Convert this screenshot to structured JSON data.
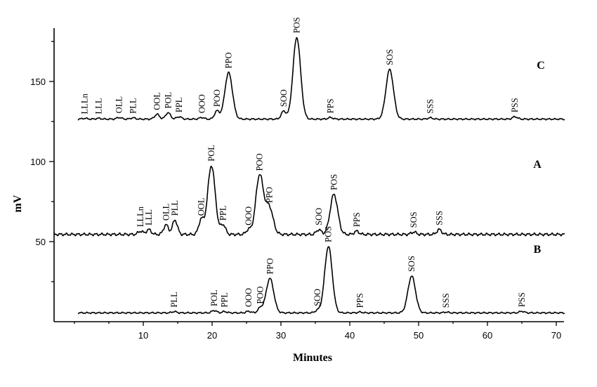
{
  "chart_data": {
    "type": "line",
    "xlabel": "Minutes",
    "ylabel": "mV",
    "xlim": [
      -3,
      72
    ],
    "ylim": [
      0,
      180
    ],
    "x_ticks": [
      10,
      20,
      30,
      40,
      50,
      60,
      70
    ],
    "y_ticks": [
      50,
      100,
      150
    ],
    "grid": false,
    "series": [
      {
        "name": "C",
        "baseline": 126.5,
        "noise_start": 0.5,
        "peaks": [
          {
            "label": "LLLn",
            "x": 1.5,
            "height": 0.5
          },
          {
            "label": "LLL",
            "x": 3.5,
            "height": 0.5
          },
          {
            "label": "OLL",
            "x": 6.5,
            "height": 1.0
          },
          {
            "label": "PLL",
            "x": 8.5,
            "height": 0.8
          },
          {
            "label": "OOL",
            "x": 12.0,
            "height": 3.0
          },
          {
            "label": "POL",
            "x": 13.6,
            "height": 4.0
          },
          {
            "label": "PPL",
            "x": 15.2,
            "height": 1.5
          },
          {
            "label": "OOO",
            "x": 18.5,
            "height": 1.0
          },
          {
            "label": "POO",
            "x": 20.7,
            "height": 5.0
          },
          {
            "label": "PPO",
            "x": 22.4,
            "height": 29.0
          },
          {
            "label": "SOO",
            "x": 30.4,
            "height": 5.0
          },
          {
            "label": "POS",
            "x": 32.3,
            "height": 51.0
          },
          {
            "label": "PPS",
            "x": 37.2,
            "height": 1.0
          },
          {
            "label": "SOS",
            "x": 45.8,
            "height": 31.0
          },
          {
            "label": "SSS",
            "x": 51.7,
            "height": 0.8
          },
          {
            "label": "PSS",
            "x": 64.0,
            "height": 1.5
          }
        ]
      },
      {
        "name": "A",
        "baseline": 54.5,
        "noise_start": -3,
        "peaks": [
          {
            "label": "LLLn",
            "x": 9.6,
            "height": 2.0
          },
          {
            "label": "LLL",
            "x": 10.8,
            "height": 3.0
          },
          {
            "label": "OLL",
            "x": 13.3,
            "height": 6.0
          },
          {
            "label": "PLL",
            "x": 14.6,
            "height": 9.0
          },
          {
            "label": "OOL",
            "x": 18.4,
            "height": 9.0
          },
          {
            "label": "POL",
            "x": 19.9,
            "height": 43.0
          },
          {
            "label": "PPL",
            "x": 21.6,
            "height": 6.0
          },
          {
            "label": "OOO",
            "x": 25.3,
            "height": 3.0
          },
          {
            "label": "POO",
            "x": 26.9,
            "height": 37.0
          },
          {
            "label": "PPO",
            "x": 28.3,
            "height": 17.0
          },
          {
            "label": "SOO",
            "x": 35.5,
            "height": 3.0
          },
          {
            "label": "POS",
            "x": 37.7,
            "height": 25.0
          },
          {
            "label": "PPS",
            "x": 41.0,
            "height": 2.0
          },
          {
            "label": "SOS",
            "x": 49.3,
            "height": 1.5
          },
          {
            "label": "SSS",
            "x": 53.0,
            "height": 3.0
          }
        ]
      },
      {
        "name": "B",
        "baseline": 5.5,
        "noise_start": 0.5,
        "peaks": [
          {
            "label": "PLL",
            "x": 14.5,
            "height": 0.8
          },
          {
            "label": "POL",
            "x": 20.3,
            "height": 1.5
          },
          {
            "label": "PPL",
            "x": 21.8,
            "height": 0.8
          },
          {
            "label": "OOO",
            "x": 25.3,
            "height": 1.0
          },
          {
            "label": "POO",
            "x": 27.0,
            "height": 3.0
          },
          {
            "label": "PPO",
            "x": 28.4,
            "height": 21.5
          },
          {
            "label": "SOO",
            "x": 35.3,
            "height": 1.5
          },
          {
            "label": "POS",
            "x": 36.9,
            "height": 41.5
          },
          {
            "label": "PPS",
            "x": 41.5,
            "height": 0.5
          },
          {
            "label": "SOS",
            "x": 49.0,
            "height": 23.0
          },
          {
            "label": "SSS",
            "x": 54.0,
            "height": 0.5
          },
          {
            "label": "PSS",
            "x": 65.0,
            "height": 1.0
          }
        ]
      }
    ]
  }
}
